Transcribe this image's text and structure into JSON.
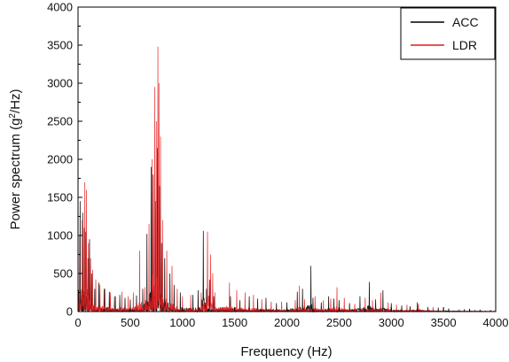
{
  "chart_data": {
    "type": "line",
    "title": "",
    "xlabel": "Frequency (Hz)",
    "ylabel_prefix": "Power spectrum (g",
    "ylabel_sup": "2",
    "ylabel_suffix": "/Hz)",
    "xlim": [
      0,
      4000
    ],
    "ylim": [
      0,
      4000
    ],
    "x_ticks": [
      0,
      500,
      1000,
      1500,
      2000,
      2500,
      3000,
      3500,
      4000
    ],
    "y_ticks": [
      0,
      500,
      1000,
      1500,
      2000,
      2500,
      3000,
      3500,
      4000
    ],
    "grid": false,
    "legend_position": "top-right",
    "series": [
      {
        "name": "ACC",
        "color": "#000000",
        "peaks": [
          [
            20,
            1450
          ],
          [
            45,
            1300
          ],
          [
            60,
            1100
          ],
          [
            75,
            1050
          ],
          [
            95,
            700
          ],
          [
            110,
            950
          ],
          [
            130,
            500
          ],
          [
            160,
            300
          ],
          [
            200,
            380
          ],
          [
            250,
            300
          ],
          [
            300,
            260
          ],
          [
            350,
            200
          ],
          [
            400,
            220
          ],
          [
            450,
            180
          ],
          [
            500,
            160
          ],
          [
            560,
            210
          ],
          [
            620,
            300
          ],
          [
            660,
            1020
          ],
          [
            700,
            1900
          ],
          [
            720,
            1800
          ],
          [
            740,
            1450
          ],
          [
            760,
            2150
          ],
          [
            780,
            1650
          ],
          [
            800,
            900
          ],
          [
            830,
            700
          ],
          [
            880,
            500
          ],
          [
            920,
            350
          ],
          [
            980,
            250
          ],
          [
            1100,
            220
          ],
          [
            1150,
            280
          ],
          [
            1200,
            1060
          ],
          [
            1230,
            300
          ],
          [
            1260,
            420
          ],
          [
            1300,
            200
          ],
          [
            1460,
            200
          ],
          [
            1550,
            150
          ],
          [
            1640,
            200
          ],
          [
            1720,
            170
          ],
          [
            1800,
            180
          ],
          [
            1900,
            110
          ],
          [
            2000,
            120
          ],
          [
            2100,
            260
          ],
          [
            2150,
            300
          ],
          [
            2230,
            600
          ],
          [
            2250,
            180
          ],
          [
            2330,
            120
          ],
          [
            2400,
            200
          ],
          [
            2450,
            170
          ],
          [
            2500,
            150
          ],
          [
            2600,
            110
          ],
          [
            2700,
            200
          ],
          [
            2790,
            390
          ],
          [
            2850,
            160
          ],
          [
            2920,
            280
          ],
          [
            3000,
            110
          ],
          [
            3100,
            80
          ],
          [
            3180,
            70
          ],
          [
            3250,
            120
          ],
          [
            3350,
            60
          ],
          [
            3450,
            50
          ],
          [
            3550,
            40
          ],
          [
            3700,
            30
          ],
          [
            3850,
            25
          ],
          [
            3950,
            20
          ]
        ]
      },
      {
        "name": "LDR",
        "color": "#e41a1c",
        "peaks": [
          [
            15,
            1000
          ],
          [
            40,
            1200
          ],
          [
            65,
            1700
          ],
          [
            80,
            1600
          ],
          [
            100,
            900
          ],
          [
            120,
            700
          ],
          [
            140,
            550
          ],
          [
            170,
            420
          ],
          [
            210,
            350
          ],
          [
            260,
            300
          ],
          [
            310,
            250
          ],
          [
            360,
            200
          ],
          [
            420,
            260
          ],
          [
            480,
            200
          ],
          [
            530,
            250
          ],
          [
            590,
            800
          ],
          [
            640,
            320
          ],
          [
            680,
            1150
          ],
          [
            710,
            2000
          ],
          [
            735,
            2950
          ],
          [
            750,
            2500
          ],
          [
            765,
            3480
          ],
          [
            775,
            3000
          ],
          [
            790,
            2300
          ],
          [
            810,
            1200
          ],
          [
            850,
            800
          ],
          [
            900,
            600
          ],
          [
            950,
            300
          ],
          [
            1000,
            200
          ],
          [
            1080,
            220
          ],
          [
            1180,
            250
          ],
          [
            1240,
            1050
          ],
          [
            1270,
            750
          ],
          [
            1290,
            500
          ],
          [
            1310,
            250
          ],
          [
            1450,
            380
          ],
          [
            1520,
            280
          ],
          [
            1600,
            250
          ],
          [
            1680,
            220
          ],
          [
            1760,
            160
          ],
          [
            1850,
            130
          ],
          [
            1950,
            130
          ],
          [
            2080,
            150
          ],
          [
            2120,
            340
          ],
          [
            2170,
            160
          ],
          [
            2270,
            200
          ],
          [
            2350,
            150
          ],
          [
            2420,
            170
          ],
          [
            2480,
            320
          ],
          [
            2550,
            180
          ],
          [
            2650,
            100
          ],
          [
            2750,
            180
          ],
          [
            2820,
            150
          ],
          [
            2900,
            250
          ],
          [
            2970,
            120
          ],
          [
            3050,
            90
          ],
          [
            3150,
            90
          ],
          [
            3260,
            100
          ],
          [
            3400,
            60
          ],
          [
            3500,
            40
          ],
          [
            3650,
            30
          ],
          [
            3800,
            25
          ],
          [
            3950,
            20
          ]
        ]
      }
    ]
  }
}
